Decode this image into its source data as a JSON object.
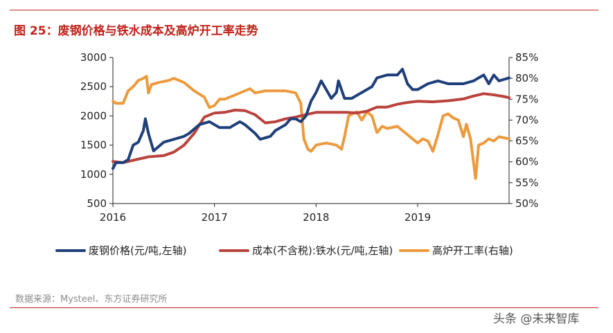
{
  "title": "图 25：废钢价格与铁水成本及高炉开工率走势",
  "source": "数据来源：Mysteel、东方证券研究所",
  "watermark": "头条 @未来智库",
  "chart_data": {
    "type": "line",
    "left_axis": {
      "min": 500,
      "max": 3000,
      "ticks": [
        "500",
        "1000",
        "1500",
        "2000",
        "2500",
        "3000"
      ]
    },
    "right_axis": {
      "min": 50,
      "max": 85,
      "ticks": [
        "50%",
        "55%",
        "60%",
        "65%",
        "70%",
        "75%",
        "80%",
        "85%"
      ]
    },
    "x_axis": {
      "min": 2016,
      "max": 2019.9,
      "ticks": [
        "2016",
        "2017",
        "2018",
        "2019"
      ]
    },
    "series": [
      {
        "name": "废钢价格(元/吨,左轴)",
        "axis": "left",
        "color": "#1f3f7a",
        "points": [
          [
            2016.0,
            1100
          ],
          [
            2016.03,
            1200
          ],
          [
            2016.1,
            1200
          ],
          [
            2016.15,
            1250
          ],
          [
            2016.2,
            1500
          ],
          [
            2016.25,
            1550
          ],
          [
            2016.3,
            1750
          ],
          [
            2016.32,
            1950
          ],
          [
            2016.35,
            1700
          ],
          [
            2016.4,
            1400
          ],
          [
            2016.5,
            1550
          ],
          [
            2016.6,
            1600
          ],
          [
            2016.7,
            1650
          ],
          [
            2016.75,
            1700
          ],
          [
            2016.85,
            1850
          ],
          [
            2016.95,
            1900
          ],
          [
            2017.05,
            1800
          ],
          [
            2017.15,
            1800
          ],
          [
            2017.25,
            1900
          ],
          [
            2017.3,
            1850
          ],
          [
            2017.4,
            1700
          ],
          [
            2017.45,
            1600
          ],
          [
            2017.55,
            1650
          ],
          [
            2017.6,
            1750
          ],
          [
            2017.65,
            1800
          ],
          [
            2017.7,
            1850
          ],
          [
            2017.75,
            1950
          ],
          [
            2017.8,
            1950
          ],
          [
            2017.85,
            1900
          ],
          [
            2017.9,
            2000
          ],
          [
            2017.95,
            2250
          ],
          [
            2018.0,
            2400
          ],
          [
            2018.05,
            2600
          ],
          [
            2018.1,
            2450
          ],
          [
            2018.15,
            2300
          ],
          [
            2018.2,
            2400
          ],
          [
            2018.22,
            2600
          ],
          [
            2018.28,
            2300
          ],
          [
            2018.35,
            2300
          ],
          [
            2018.45,
            2400
          ],
          [
            2018.55,
            2500
          ],
          [
            2018.6,
            2650
          ],
          [
            2018.7,
            2700
          ],
          [
            2018.8,
            2700
          ],
          [
            2018.85,
            2800
          ],
          [
            2018.9,
            2550
          ],
          [
            2018.95,
            2450
          ],
          [
            2019.0,
            2450
          ],
          [
            2019.1,
            2550
          ],
          [
            2019.2,
            2600
          ],
          [
            2019.3,
            2550
          ],
          [
            2019.45,
            2550
          ],
          [
            2019.55,
            2600
          ],
          [
            2019.6,
            2650
          ],
          [
            2019.65,
            2700
          ],
          [
            2019.7,
            2550
          ],
          [
            2019.75,
            2700
          ],
          [
            2019.8,
            2600
          ],
          [
            2019.9,
            2650
          ]
        ]
      },
      {
        "name": "成本(不含税):铁水(元/吨,左轴)",
        "axis": "left",
        "color": "#b9433d",
        "points": [
          [
            2016.0,
            1220
          ],
          [
            2016.1,
            1200
          ],
          [
            2016.2,
            1240
          ],
          [
            2016.35,
            1300
          ],
          [
            2016.5,
            1320
          ],
          [
            2016.6,
            1380
          ],
          [
            2016.7,
            1500
          ],
          [
            2016.8,
            1700
          ],
          [
            2016.9,
            1980
          ],
          [
            2017.0,
            2050
          ],
          [
            2017.1,
            2060
          ],
          [
            2017.2,
            2100
          ],
          [
            2017.3,
            2090
          ],
          [
            2017.4,
            2020
          ],
          [
            2017.5,
            1880
          ],
          [
            2017.6,
            1900
          ],
          [
            2017.7,
            1950
          ],
          [
            2017.8,
            1980
          ],
          [
            2017.9,
            2020
          ],
          [
            2018.0,
            2060
          ],
          [
            2018.1,
            2060
          ],
          [
            2018.2,
            2060
          ],
          [
            2018.3,
            2060
          ],
          [
            2018.4,
            2050
          ],
          [
            2018.5,
            2080
          ],
          [
            2018.6,
            2150
          ],
          [
            2018.7,
            2150
          ],
          [
            2018.8,
            2200
          ],
          [
            2018.9,
            2230
          ],
          [
            2019.0,
            2250
          ],
          [
            2019.15,
            2240
          ],
          [
            2019.3,
            2260
          ],
          [
            2019.45,
            2290
          ],
          [
            2019.55,
            2340
          ],
          [
            2019.65,
            2380
          ],
          [
            2019.75,
            2360
          ],
          [
            2019.85,
            2330
          ],
          [
            2019.9,
            2310
          ]
        ]
      },
      {
        "name": "高炉开工率(右轴)",
        "axis": "right",
        "color": "#ec9a3e",
        "points": [
          [
            2016.0,
            74.5
          ],
          [
            2016.03,
            74.0
          ],
          [
            2016.1,
            74.0
          ],
          [
            2016.15,
            77.0
          ],
          [
            2016.2,
            78.0
          ],
          [
            2016.25,
            79.5
          ],
          [
            2016.3,
            80.0
          ],
          [
            2016.33,
            80.5
          ],
          [
            2016.35,
            76.5
          ],
          [
            2016.38,
            78.5
          ],
          [
            2016.45,
            79.0
          ],
          [
            2016.55,
            79.5
          ],
          [
            2016.6,
            80.0
          ],
          [
            2016.7,
            79.0
          ],
          [
            2016.8,
            77.0
          ],
          [
            2016.9,
            75.5
          ],
          [
            2016.95,
            73.0
          ],
          [
            2017.0,
            73.5
          ],
          [
            2017.05,
            75.0
          ],
          [
            2017.1,
            75.0
          ],
          [
            2017.2,
            76.0
          ],
          [
            2017.3,
            77.0
          ],
          [
            2017.35,
            77.5
          ],
          [
            2017.4,
            76.5
          ],
          [
            2017.5,
            77.0
          ],
          [
            2017.6,
            77.0
          ],
          [
            2017.7,
            77.0
          ],
          [
            2017.8,
            76.5
          ],
          [
            2017.85,
            74.0
          ],
          [
            2017.88,
            65.5
          ],
          [
            2017.92,
            63.0
          ],
          [
            2017.95,
            62.5
          ],
          [
            2018.0,
            64.0
          ],
          [
            2018.1,
            64.5
          ],
          [
            2018.2,
            64.0
          ],
          [
            2018.25,
            63.0
          ],
          [
            2018.28,
            66.0
          ],
          [
            2018.32,
            71.0
          ],
          [
            2018.4,
            72.0
          ],
          [
            2018.45,
            70.0
          ],
          [
            2018.5,
            72.0
          ],
          [
            2018.55,
            71.0
          ],
          [
            2018.6,
            67.0
          ],
          [
            2018.65,
            68.5
          ],
          [
            2018.7,
            68.0
          ],
          [
            2018.8,
            68.5
          ],
          [
            2018.9,
            66.5
          ],
          [
            2019.0,
            64.5
          ],
          [
            2019.05,
            65.5
          ],
          [
            2019.1,
            65.0
          ],
          [
            2019.15,
            62.5
          ],
          [
            2019.2,
            66.5
          ],
          [
            2019.25,
            71.0
          ],
          [
            2019.3,
            71.5
          ],
          [
            2019.35,
            70.5
          ],
          [
            2019.4,
            70.0
          ],
          [
            2019.45,
            66.0
          ],
          [
            2019.48,
            69.0
          ],
          [
            2019.52,
            65.5
          ],
          [
            2019.57,
            56.0
          ],
          [
            2019.6,
            64.0
          ],
          [
            2019.65,
            64.5
          ],
          [
            2019.7,
            65.5
          ],
          [
            2019.75,
            65.0
          ],
          [
            2019.8,
            66.0
          ],
          [
            2019.9,
            65.5
          ]
        ]
      }
    ],
    "legend_position": "bottom",
    "grid": false
  }
}
